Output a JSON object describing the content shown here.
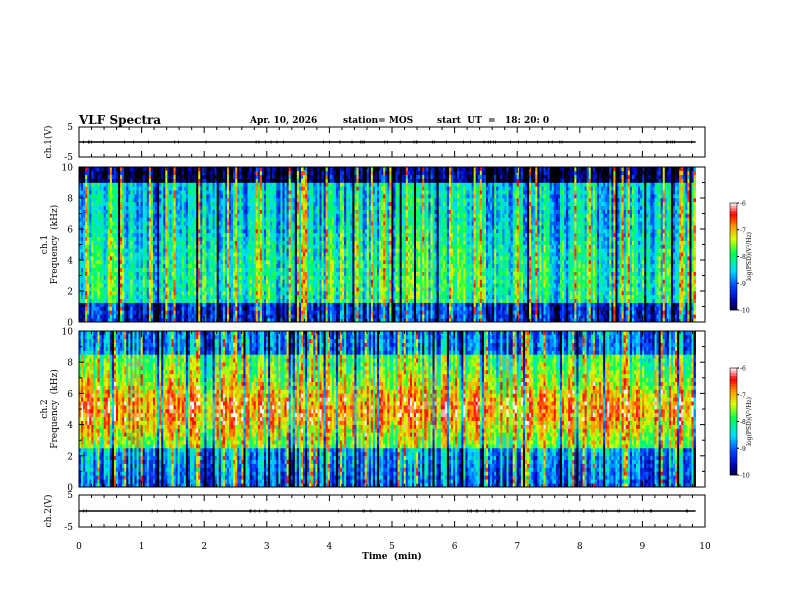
{
  "header": {
    "title": "VLF Spectra",
    "date": "Apr. 10, 2026",
    "station": "station= MOS",
    "start": "start  UT  =   18: 20: 0"
  },
  "chart_data": [
    {
      "type": "line",
      "ylabel": "ch.1(V)",
      "ylim": [
        -5,
        5
      ],
      "yticks": [
        "5",
        "-5"
      ],
      "x": [
        0,
        9.85
      ],
      "values": [
        0,
        0
      ],
      "color": "#000000"
    },
    {
      "type": "heatmap",
      "ylabel_line1": "ch.1",
      "ylabel_line2": "Frequency  (kHz)",
      "xlim": [
        0,
        10
      ],
      "data_xmax": 9.85,
      "ylim": [
        0,
        10
      ],
      "yticks": [
        "0",
        "2",
        "4",
        "6",
        "8",
        "10"
      ],
      "colorbar": {
        "label": "log(PSD)(V²/Hz)",
        "range": [
          -10,
          -6
        ],
        "ticks": [
          "-6",
          "-7",
          "-8",
          "-9",
          "-10"
        ]
      },
      "color_scale": [
        "#000000",
        "#0000ff",
        "#00ffff",
        "#00ff00",
        "#ffff00",
        "#ff0000",
        "#ffffff"
      ]
    },
    {
      "type": "heatmap",
      "ylabel_line1": "ch.2",
      "ylabel_line2": "Frequency  (kHz)",
      "xlim": [
        0,
        10
      ],
      "data_xmax": 9.85,
      "ylim": [
        0,
        10
      ],
      "yticks": [
        "0",
        "2",
        "4",
        "6",
        "8",
        "10"
      ],
      "colorbar": {
        "label": "log(PSD)(V²/Hz)",
        "range": [
          -10,
          -6
        ],
        "ticks": [
          "-6",
          "-7",
          "-8",
          "-9",
          "-10"
        ]
      },
      "color_scale": [
        "#000000",
        "#0000ff",
        "#00ffff",
        "#00ff00",
        "#ffff00",
        "#ff0000",
        "#ffffff"
      ]
    },
    {
      "type": "line",
      "ylabel": "ch.2(V)",
      "ylim": [
        -5,
        5
      ],
      "yticks": [
        "5",
        "-5"
      ],
      "x": [
        0,
        9.85
      ],
      "values": [
        0,
        0
      ],
      "color": "#000000"
    }
  ],
  "xaxis": {
    "label": "Time  (min)",
    "range": [
      0,
      10
    ],
    "ticks": [
      "0",
      "1",
      "2",
      "3",
      "4",
      "5",
      "6",
      "7",
      "8",
      "9",
      "10"
    ]
  }
}
